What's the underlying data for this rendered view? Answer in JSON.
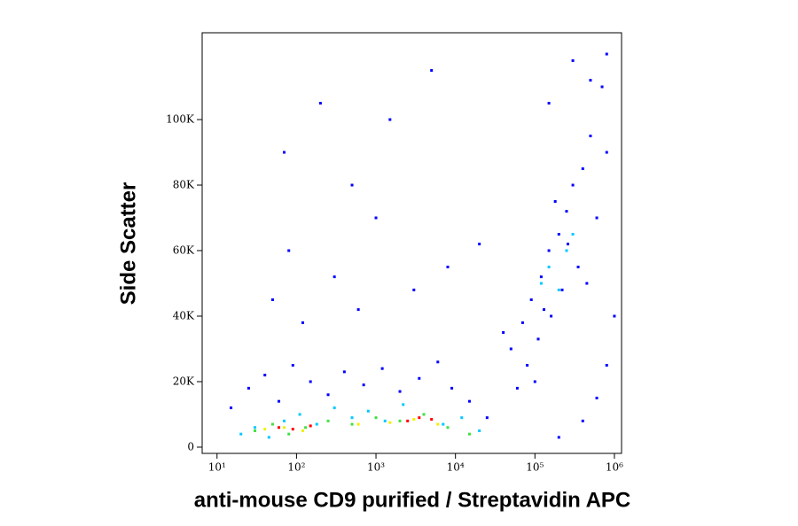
{
  "chart_data": {
    "type": "scatter",
    "x_label": "anti-mouse CD9 purified / Streptavidin APC",
    "y_label": "Side Scatter",
    "xscale": "log",
    "xlim": [
      6.5,
      1230000
    ],
    "ylim": [
      -1900,
      126500
    ],
    "xticks": [
      {
        "value": 10,
        "label": "10¹"
      },
      {
        "value": 100,
        "label": "10²"
      },
      {
        "value": 1000,
        "label": "10³"
      },
      {
        "value": 10000,
        "label": "10⁴"
      },
      {
        "value": 100000,
        "label": "10⁵"
      },
      {
        "value": 1000000,
        "label": "10⁶"
      }
    ],
    "yticks": [
      0,
      {
        "value": 20000,
        "label": "20K"
      },
      {
        "value": 40000,
        "label": "40K"
      },
      {
        "value": 60000,
        "label": "60K"
      },
      {
        "value": 80000,
        "label": "80K"
      },
      {
        "value": 100000,
        "label": "100K"
      }
    ],
    "series": [
      {
        "color": "#0000ff",
        "x": [
          15,
          25,
          40,
          60,
          90,
          150,
          250,
          400,
          700,
          1200,
          2000,
          3500,
          6000,
          9000,
          15000,
          25000,
          50,
          80,
          120,
          300,
          600,
          1000,
          3000,
          8000,
          20000,
          40000,
          70,
          200,
          500,
          1500,
          5000,
          50000,
          70000,
          90000,
          120000,
          150000,
          200000,
          250000,
          300000,
          400000,
          500000,
          80000,
          110000,
          160000,
          220000,
          350000,
          600000,
          700000,
          800000,
          130000,
          180000,
          260000,
          450000,
          100000,
          60000,
          200000,
          400000,
          600000,
          800000,
          1000000,
          300000,
          500000,
          800000,
          150000
        ],
        "values": [
          12000,
          18000,
          22000,
          14000,
          25000,
          20000,
          16000,
          23000,
          19000,
          24000,
          17000,
          21000,
          26000,
          18000,
          14000,
          9000,
          45000,
          60000,
          38000,
          52000,
          42000,
          70000,
          48000,
          55000,
          62000,
          35000,
          90000,
          105000,
          80000,
          100000,
          115000,
          30000,
          38000,
          45000,
          52000,
          60000,
          65000,
          72000,
          80000,
          85000,
          95000,
          25000,
          33000,
          40000,
          48000,
          55000,
          70000,
          110000,
          90000,
          42000,
          75000,
          62000,
          50000,
          20000,
          18000,
          3000,
          8000,
          15000,
          25000,
          40000,
          118000,
          112000,
          120000,
          105000
        ]
      },
      {
        "color": "#00c8ff",
        "x": [
          20,
          30,
          45,
          70,
          110,
          180,
          300,
          500,
          800,
          1300,
          2200,
          4000,
          7000,
          12000,
          20000,
          150000,
          250000,
          200000,
          300000,
          120000
        ],
        "values": [
          4000,
          6000,
          3000,
          8000,
          10000,
          7000,
          12000,
          9000,
          11000,
          8000,
          13000,
          10000,
          7000,
          9000,
          5000,
          55000,
          60000,
          48000,
          65000,
          50000
        ]
      },
      {
        "color": "#40e040",
        "x": [
          30,
          50,
          80,
          130,
          250,
          500,
          1000,
          2000,
          4000,
          8000,
          15000
        ],
        "values": [
          5000,
          7000,
          4000,
          6000,
          8000,
          7000,
          9000,
          8000,
          10000,
          6000,
          4000
        ]
      },
      {
        "color": "#f0f000",
        "x": [
          40,
          70,
          120,
          600,
          1500,
          3000,
          6000
        ],
        "values": [
          5500,
          6000,
          5000,
          7000,
          7500,
          8500,
          7000
        ]
      },
      {
        "color": "#ff0000",
        "x": [
          60,
          90,
          150,
          2500,
          3500,
          5000
        ],
        "values": [
          6000,
          5500,
          6500,
          8000,
          9000,
          8500
        ]
      }
    ]
  }
}
